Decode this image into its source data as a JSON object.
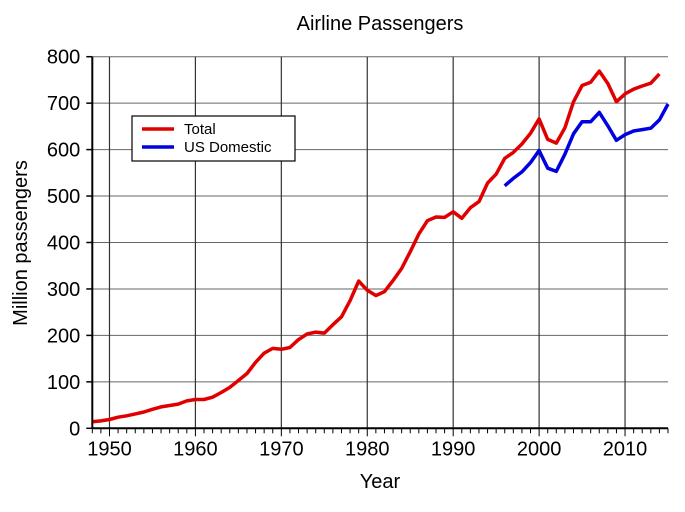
{
  "chart_data": {
    "type": "line",
    "title": "Airline Passengers",
    "xlabel": "Year",
    "ylabel": "Million passengers",
    "xlim": [
      1948,
      2015
    ],
    "ylim": [
      0,
      800
    ],
    "xticks": [
      1950,
      1960,
      1970,
      1980,
      1990,
      2000,
      2010
    ],
    "yticks": [
      0,
      100,
      200,
      300,
      400,
      500,
      600,
      700,
      800
    ],
    "grid": true,
    "legend_position": "top-left",
    "series": [
      {
        "name": "Total",
        "color": "#e00000",
        "x": [
          1948,
          1949,
          1950,
          1951,
          1952,
          1953,
          1954,
          1955,
          1956,
          1957,
          1958,
          1959,
          1960,
          1961,
          1962,
          1963,
          1964,
          1965,
          1966,
          1967,
          1968,
          1969,
          1970,
          1971,
          1972,
          1973,
          1974,
          1975,
          1976,
          1977,
          1978,
          1979,
          1980,
          1981,
          1982,
          1983,
          1984,
          1985,
          1986,
          1987,
          1988,
          1989,
          1990,
          1991,
          1992,
          1993,
          1994,
          1995,
          1996,
          1997,
          1998,
          1999,
          2000,
          2001,
          2002,
          2003,
          2004,
          2005,
          2006,
          2007,
          2008,
          2009,
          2010,
          2011,
          2012,
          2013,
          2014
        ],
        "values": [
          14,
          16,
          19,
          24,
          27,
          31,
          35,
          41,
          46,
          49,
          52,
          59,
          62,
          62,
          67,
          77,
          88,
          103,
          118,
          142,
          162,
          172,
          170,
          174,
          191,
          203,
          207,
          205,
          223,
          240,
          275,
          317,
          297,
          286,
          294,
          318,
          344,
          380,
          418,
          447,
          455,
          454,
          466,
          452,
          475,
          488,
          528,
          547,
          581,
          594,
          612,
          635,
          666,
          622,
          614,
          647,
          703,
          738,
          745,
          769,
          742,
          703,
          720,
          730,
          737,
          743,
          763
        ]
      },
      {
        "name": "US Domestic",
        "color": "#0000e0",
        "x": [
          1996,
          1997,
          1998,
          1999,
          2000,
          2001,
          2002,
          2003,
          2004,
          2005,
          2006,
          2007,
          2008,
          2009,
          2010,
          2011,
          2012,
          2013,
          2014,
          2015
        ],
        "values": [
          522,
          538,
          552,
          572,
          598,
          560,
          553,
          590,
          634,
          660,
          660,
          680,
          651,
          620,
          632,
          640,
          643,
          646,
          664,
          698
        ]
      }
    ]
  }
}
